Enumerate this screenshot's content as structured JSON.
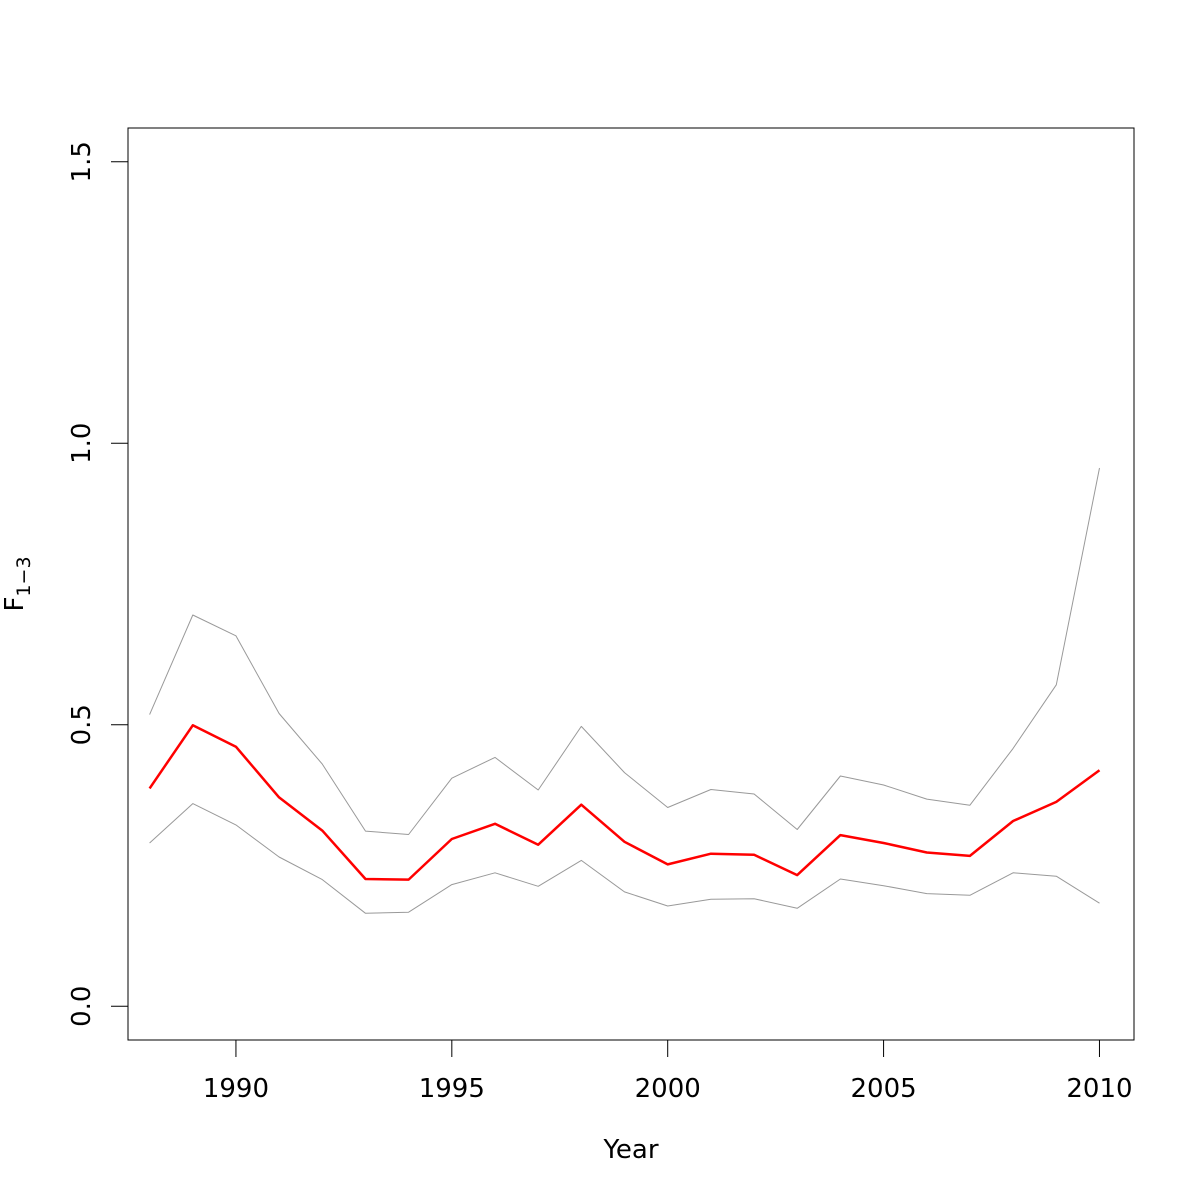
{
  "chart_data": {
    "type": "line",
    "xlabel": "Year",
    "ylabel": "F",
    "ylabel_subscript": "1−3",
    "x": [
      1988,
      1989,
      1990,
      1991,
      1992,
      1993,
      1994,
      1995,
      1996,
      1997,
      1998,
      1999,
      2000,
      2001,
      2002,
      2003,
      2004,
      2005,
      2006,
      2007,
      2008,
      2009,
      2010
    ],
    "xlim": [
      1987.5,
      2010.8
    ],
    "ylim": [
      -0.06,
      1.56
    ],
    "xticks": [
      1990,
      1995,
      2000,
      2005,
      2010
    ],
    "yticks": [
      0.0,
      0.5,
      1.0,
      1.5
    ],
    "xtick_labels": [
      "1990",
      "1995",
      "2000",
      "2005",
      "2010"
    ],
    "ytick_labels": [
      "0.0",
      "0.5",
      "1.0",
      "1.5"
    ],
    "grid": false,
    "legend": "none",
    "series": [
      {
        "role": "estimate",
        "color": "#ff0000",
        "values": [
          0.387,
          0.499,
          0.461,
          0.371,
          0.312,
          0.226,
          0.225,
          0.297,
          0.324,
          0.287,
          0.358,
          0.292,
          0.252,
          0.271,
          0.269,
          0.233,
          0.304,
          0.29,
          0.273,
          0.267,
          0.329,
          0.363,
          0.419
        ]
      },
      {
        "role": "upper-bound",
        "color": "#999999",
        "values": [
          0.518,
          0.695,
          0.658,
          0.52,
          0.43,
          0.311,
          0.305,
          0.405,
          0.442,
          0.384,
          0.497,
          0.415,
          0.353,
          0.385,
          0.377,
          0.314,
          0.409,
          0.393,
          0.368,
          0.357,
          0.458,
          0.571,
          0.956
        ]
      },
      {
        "role": "lower-bound",
        "color": "#999999",
        "values": [
          0.29,
          0.36,
          0.322,
          0.265,
          0.225,
          0.165,
          0.167,
          0.216,
          0.237,
          0.213,
          0.259,
          0.203,
          0.178,
          0.19,
          0.191,
          0.174,
          0.226,
          0.214,
          0.2,
          0.197,
          0.237,
          0.231,
          0.183
        ]
      }
    ]
  }
}
